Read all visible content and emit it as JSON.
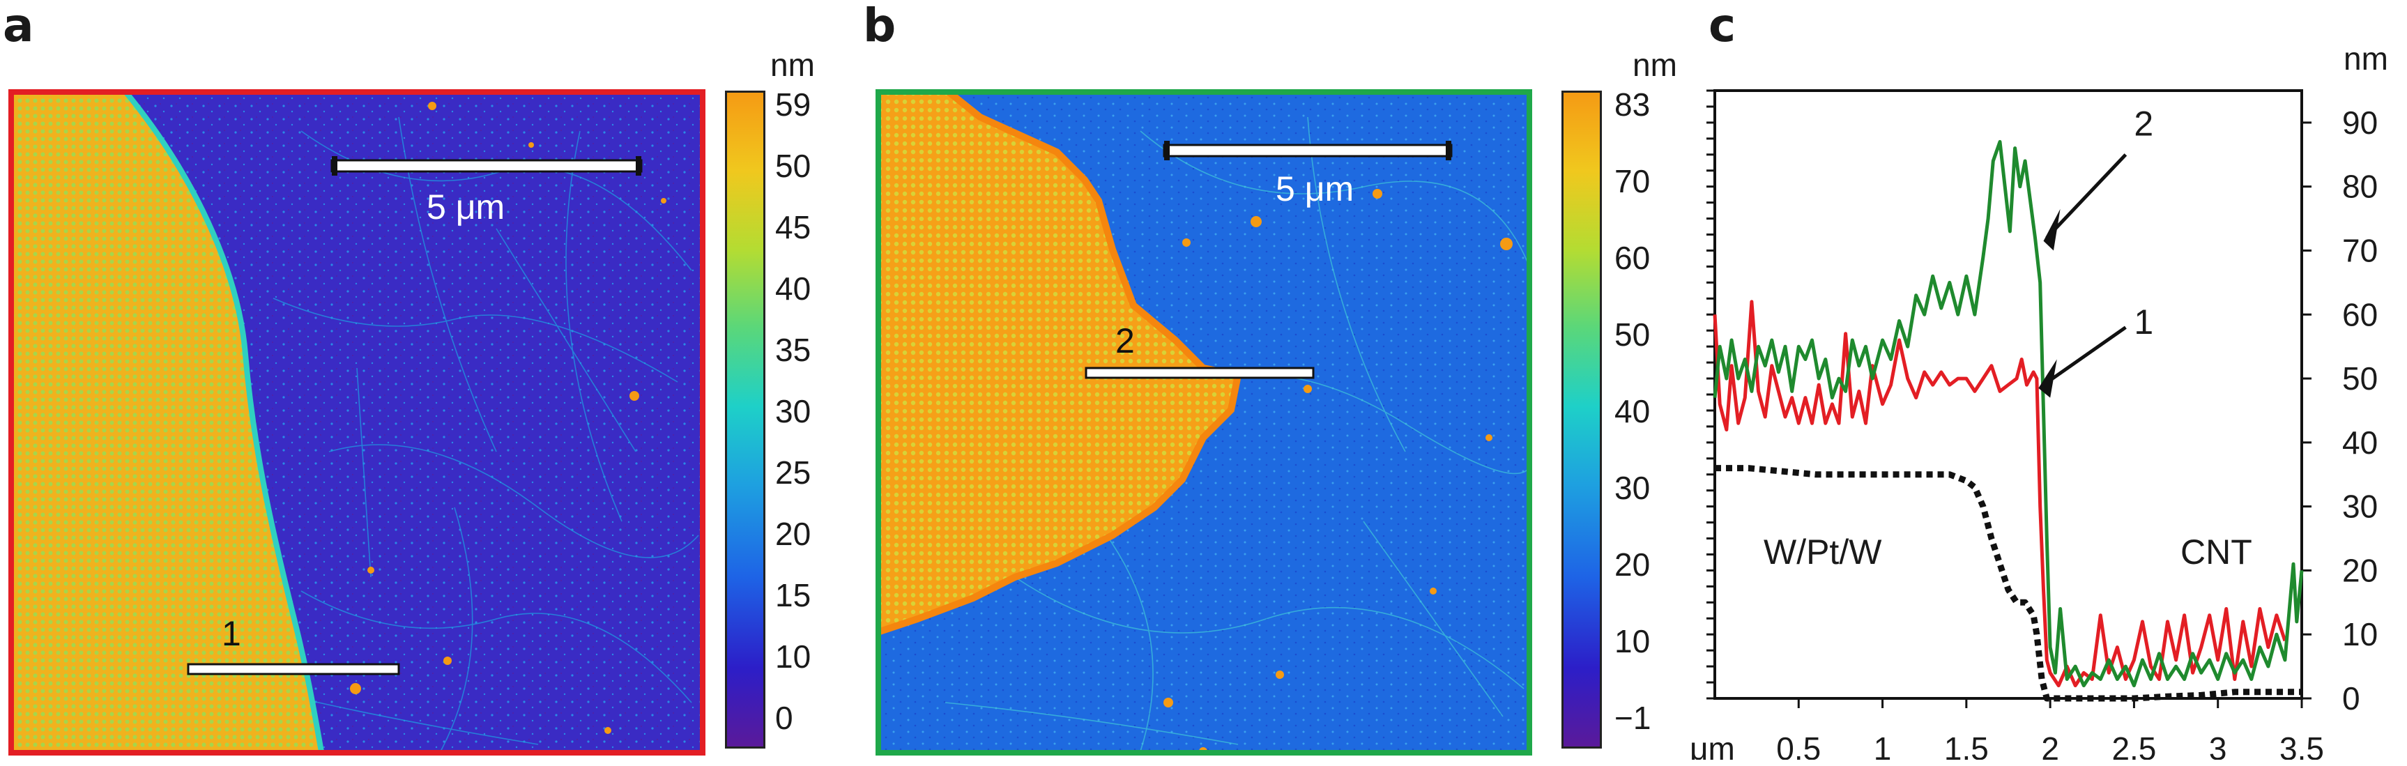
{
  "panels": [
    {
      "id": "a",
      "label": "a",
      "frame_color": "#e31e24",
      "colorbar": {
        "unit": "nm",
        "ticks": [
          "59",
          "50",
          "45",
          "40",
          "35",
          "30",
          "25",
          "20",
          "15",
          "10",
          "0"
        ]
      },
      "scale_bar_text": "5 μm",
      "line_label": "1",
      "palette": [
        "#5a1a9a",
        "#2c1ec8",
        "#1e64e6",
        "#1ea0e0",
        "#1ed0c8",
        "#5ad77a",
        "#b4dc32",
        "#f0c81e",
        "#f59b14"
      ]
    },
    {
      "id": "b",
      "label": "b",
      "frame_color": "#1fa84a",
      "colorbar": {
        "unit": "nm",
        "ticks": [
          "83",
          "70",
          "60",
          "50",
          "40",
          "30",
          "20",
          "10",
          "−1"
        ]
      },
      "scale_bar_text": "5 μm",
      "line_label": "2",
      "palette": [
        "#5a1a9a",
        "#2c1ec8",
        "#1e64e6",
        "#1ea0e0",
        "#1ed0c8",
        "#5ad77a",
        "#b4dc32",
        "#f0c81e",
        "#f59b14"
      ]
    }
  ],
  "panel_c_label": "c",
  "chart_data": {
    "type": "line",
    "xlabel": "μm",
    "ylabel_right": "nm",
    "x_ticks": [
      "0.5",
      "1",
      "1.5",
      "2",
      "2.5",
      "3",
      "3.5"
    ],
    "y_ticks": [
      "0",
      "10",
      "20",
      "30",
      "40",
      "50",
      "60",
      "70",
      "80",
      "90"
    ],
    "xlim": [
      0,
      3.5
    ],
    "ylim": [
      0,
      95
    ],
    "grid": false,
    "annotations": {
      "line1": "1",
      "line2": "2",
      "left_region": "W/Pt/W",
      "right_region": "CNT"
    },
    "series": [
      {
        "color": "#e31e24",
        "points": [
          [
            0,
            60
          ],
          [
            0.03,
            46
          ],
          [
            0.07,
            42
          ],
          [
            0.1,
            52
          ],
          [
            0.14,
            43
          ],
          [
            0.18,
            47
          ],
          [
            0.22,
            62
          ],
          [
            0.26,
            48
          ],
          [
            0.3,
            44
          ],
          [
            0.34,
            52
          ],
          [
            0.38,
            48
          ],
          [
            0.42,
            44
          ],
          [
            0.46,
            47
          ],
          [
            0.5,
            43
          ],
          [
            0.54,
            47
          ],
          [
            0.58,
            43
          ],
          [
            0.62,
            49
          ],
          [
            0.66,
            43
          ],
          [
            0.7,
            46
          ],
          [
            0.74,
            43
          ],
          [
            0.78,
            57
          ],
          [
            0.82,
            44
          ],
          [
            0.86,
            48
          ],
          [
            0.9,
            43
          ],
          [
            0.94,
            52
          ],
          [
            1.0,
            46
          ],
          [
            1.05,
            49
          ],
          [
            1.1,
            56
          ],
          [
            1.15,
            50
          ],
          [
            1.2,
            47
          ],
          [
            1.25,
            51
          ],
          [
            1.3,
            49
          ],
          [
            1.35,
            51
          ],
          [
            1.4,
            49
          ],
          [
            1.45,
            50
          ],
          [
            1.5,
            50
          ],
          [
            1.55,
            48
          ],
          [
            1.6,
            50
          ],
          [
            1.65,
            52
          ],
          [
            1.7,
            48
          ],
          [
            1.75,
            49
          ],
          [
            1.8,
            50
          ],
          [
            1.83,
            53
          ],
          [
            1.86,
            49
          ],
          [
            1.9,
            51
          ],
          [
            1.92,
            50
          ],
          [
            1.94,
            30
          ],
          [
            1.96,
            17
          ],
          [
            1.98,
            6
          ],
          [
            2.0,
            4
          ],
          [
            2.05,
            2
          ],
          [
            2.1,
            5
          ],
          [
            2.15,
            2
          ],
          [
            2.2,
            4
          ],
          [
            2.25,
            3
          ],
          [
            2.3,
            13
          ],
          [
            2.35,
            4
          ],
          [
            2.4,
            8
          ],
          [
            2.45,
            3
          ],
          [
            2.5,
            6
          ],
          [
            2.55,
            12
          ],
          [
            2.6,
            5
          ],
          [
            2.65,
            3
          ],
          [
            2.7,
            12
          ],
          [
            2.75,
            6
          ],
          [
            2.8,
            13
          ],
          [
            2.85,
            4
          ],
          [
            2.9,
            8
          ],
          [
            2.95,
            13
          ],
          [
            3.0,
            6
          ],
          [
            3.05,
            14
          ],
          [
            3.1,
            3
          ],
          [
            3.15,
            12
          ],
          [
            3.2,
            5
          ],
          [
            3.25,
            14
          ],
          [
            3.3,
            8
          ],
          [
            3.35,
            13
          ],
          [
            3.4,
            9
          ]
        ]
      },
      {
        "color": "#1f8a2e",
        "points": [
          [
            0,
            47
          ],
          [
            0.03,
            55
          ],
          [
            0.07,
            50
          ],
          [
            0.1,
            56
          ],
          [
            0.14,
            50
          ],
          [
            0.18,
            53
          ],
          [
            0.22,
            48
          ],
          [
            0.26,
            55
          ],
          [
            0.3,
            52
          ],
          [
            0.34,
            56
          ],
          [
            0.38,
            51
          ],
          [
            0.42,
            55
          ],
          [
            0.46,
            48
          ],
          [
            0.5,
            55
          ],
          [
            0.54,
            53
          ],
          [
            0.58,
            56
          ],
          [
            0.62,
            50
          ],
          [
            0.66,
            53
          ],
          [
            0.7,
            47
          ],
          [
            0.74,
            50
          ],
          [
            0.78,
            48
          ],
          [
            0.82,
            56
          ],
          [
            0.86,
            52
          ],
          [
            0.9,
            55
          ],
          [
            0.94,
            50
          ],
          [
            1.0,
            56
          ],
          [
            1.05,
            53
          ],
          [
            1.1,
            59
          ],
          [
            1.15,
            55
          ],
          [
            1.2,
            63
          ],
          [
            1.25,
            60
          ],
          [
            1.3,
            66
          ],
          [
            1.35,
            61
          ],
          [
            1.4,
            65
          ],
          [
            1.45,
            60
          ],
          [
            1.5,
            66
          ],
          [
            1.55,
            60
          ],
          [
            1.6,
            69
          ],
          [
            1.63,
            75
          ],
          [
            1.66,
            84
          ],
          [
            1.7,
            87
          ],
          [
            1.73,
            80
          ],
          [
            1.76,
            73
          ],
          [
            1.79,
            86
          ],
          [
            1.82,
            80
          ],
          [
            1.85,
            84
          ],
          [
            1.88,
            78
          ],
          [
            1.91,
            72
          ],
          [
            1.94,
            65
          ],
          [
            1.96,
            45
          ],
          [
            1.98,
            25
          ],
          [
            2.0,
            8
          ],
          [
            2.03,
            4
          ],
          [
            2.06,
            14
          ],
          [
            2.1,
            3
          ],
          [
            2.15,
            5
          ],
          [
            2.2,
            2
          ],
          [
            2.25,
            4
          ],
          [
            2.3,
            3
          ],
          [
            2.35,
            6
          ],
          [
            2.4,
            3
          ],
          [
            2.45,
            5
          ],
          [
            2.5,
            2
          ],
          [
            2.55,
            6
          ],
          [
            2.6,
            3
          ],
          [
            2.65,
            7
          ],
          [
            2.7,
            3
          ],
          [
            2.75,
            5
          ],
          [
            2.8,
            3
          ],
          [
            2.85,
            7
          ],
          [
            2.9,
            4
          ],
          [
            2.95,
            6
          ],
          [
            3.0,
            3
          ],
          [
            3.05,
            7
          ],
          [
            3.1,
            4
          ],
          [
            3.15,
            6
          ],
          [
            3.2,
            3
          ],
          [
            3.25,
            8
          ],
          [
            3.3,
            5
          ],
          [
            3.35,
            10
          ],
          [
            3.4,
            6
          ],
          [
            3.45,
            21
          ],
          [
            3.47,
            12
          ],
          [
            3.5,
            20
          ]
        ]
      },
      {
        "color": "#111111",
        "dash": true,
        "points": [
          [
            0,
            36
          ],
          [
            0.2,
            36
          ],
          [
            0.4,
            35.5
          ],
          [
            0.6,
            35
          ],
          [
            0.8,
            35
          ],
          [
            1.0,
            35
          ],
          [
            1.2,
            35
          ],
          [
            1.4,
            35
          ],
          [
            1.5,
            34
          ],
          [
            1.55,
            33
          ],
          [
            1.6,
            30
          ],
          [
            1.65,
            25
          ],
          [
            1.7,
            21
          ],
          [
            1.75,
            17
          ],
          [
            1.8,
            15
          ],
          [
            1.85,
            15
          ],
          [
            1.9,
            13
          ],
          [
            1.92,
            10
          ],
          [
            1.95,
            3
          ],
          [
            1.98,
            0
          ],
          [
            2.1,
            0
          ],
          [
            2.3,
            0
          ],
          [
            2.5,
            0
          ],
          [
            2.7,
            0.3
          ],
          [
            2.9,
            0.5
          ],
          [
            3.1,
            1
          ],
          [
            3.3,
            1
          ],
          [
            3.5,
            1
          ]
        ]
      }
    ]
  }
}
